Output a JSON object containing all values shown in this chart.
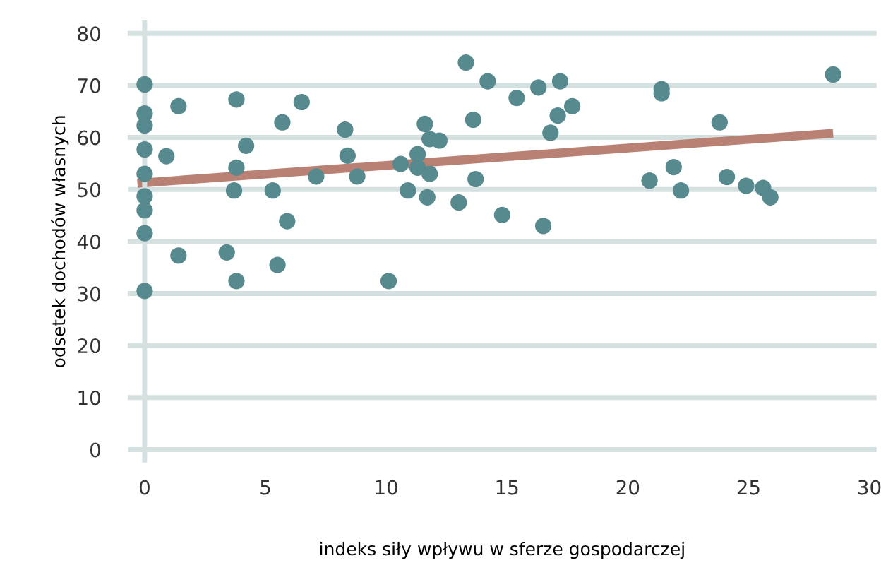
{
  "chart_data": {
    "type": "scatter",
    "xlabel": "indeks siły wpływu w sferze gospodarczej",
    "ylabel": "odsetek dochodów własnych",
    "xlim": [
      -0.7,
      30.3
    ],
    "ylim": [
      -2,
      82
    ],
    "xticks": [
      0,
      5,
      10,
      15,
      20,
      25,
      30
    ],
    "yticks": [
      0,
      10,
      20,
      30,
      40,
      50,
      60,
      70,
      80
    ],
    "grid": "y",
    "series": [
      {
        "marker": "circle",
        "color": "#568a8f",
        "x": [
          0,
          0,
          0,
          0,
          0,
          0,
          0,
          0,
          0,
          1.4,
          0.9,
          1.4,
          3.8,
          4.2,
          3.8,
          3.7,
          3.4,
          3.8,
          5.7,
          6.5,
          5.3,
          5.9,
          5.5,
          7.1,
          8.3,
          8.4,
          8.8,
          10.1,
          10.6,
          10.9,
          11.3,
          11.3,
          11.6,
          11.8,
          12.2,
          11.8,
          11.7,
          13.0,
          13.3,
          13.6,
          13.7,
          14.2,
          14.8,
          15.4,
          16.3,
          16.5,
          17.2,
          17.1,
          17.7,
          16.8,
          21.4,
          21.4,
          20.9,
          21.9,
          22.2,
          23.8,
          24.1,
          24.9,
          25.6,
          25.9,
          28.5
        ],
        "values": [
          70.2,
          64.6,
          62.3,
          57.7,
          53,
          48.7,
          46,
          41.6,
          30.5,
          66,
          56.4,
          37.3,
          67.3,
          58.4,
          54.2,
          49.8,
          37.9,
          32.4,
          62.9,
          66.8,
          49.8,
          43.9,
          35.5,
          52.5,
          61.5,
          56.5,
          52.5,
          32.4,
          54.9,
          49.8,
          56.8,
          54.2,
          62.6,
          59.7,
          59.4,
          53,
          48.5,
          47.5,
          74.4,
          63.4,
          52,
          70.8,
          45.1,
          67.6,
          69.6,
          43,
          70.8,
          64.2,
          66,
          60.9,
          69.3,
          68.5,
          51.7,
          54.3,
          49.8,
          62.9,
          52.4,
          50.7,
          50.3,
          48.5,
          72.1
        ]
      },
      {
        "type": "line",
        "color": "#b98074",
        "x": [
          -0.3,
          28.5
        ],
        "values": [
          51.2,
          60.8
        ],
        "line_style": "solid"
      }
    ]
  }
}
